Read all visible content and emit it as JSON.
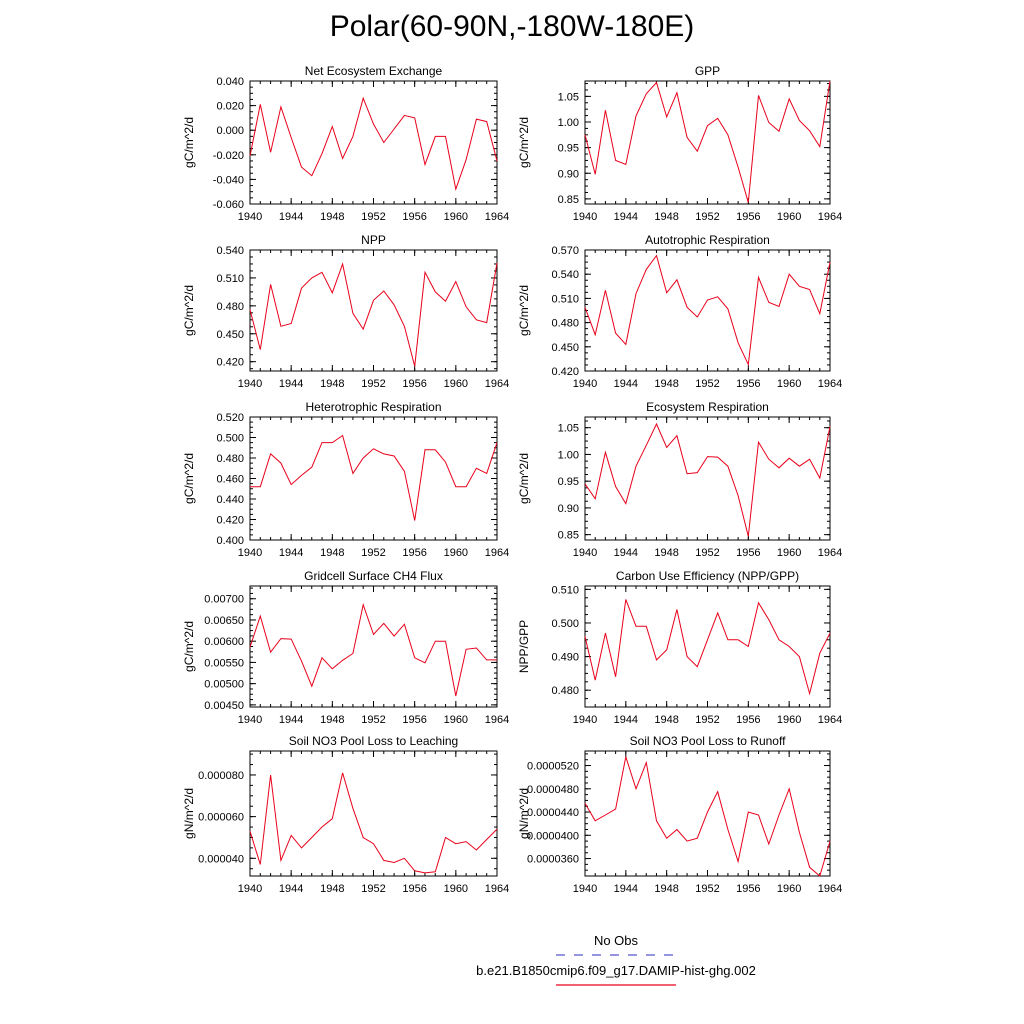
{
  "title": "Polar(60-90N,-180W-180E)",
  "legend": {
    "entries": [
      {
        "label": "No Obs",
        "color": "#5555cc",
        "style": "dashed"
      },
      {
        "label": "b.e21.B1850cmip6.f09_g17.DAMIP-hist-ghg.002",
        "color": "#e8001a",
        "style": "solid"
      }
    ]
  },
  "line_color": "#e8001a",
  "chart_data": [
    {
      "type": "line",
      "title": "Net Ecosystem Exchange",
      "ylabel": "gC/m^2/d",
      "xlim": [
        1940,
        1964
      ],
      "ylim": [
        -0.06,
        0.04
      ],
      "xticks": [
        "1940",
        "1944",
        "1948",
        "1952",
        "1956",
        "1960",
        "1964"
      ],
      "yticks": [
        "-0.060",
        "-0.040",
        "-0.020",
        "0.000",
        "0.020",
        "0.040"
      ],
      "x": [
        1940,
        1941,
        1942,
        1943,
        1944,
        1945,
        1946,
        1947,
        1948,
        1949,
        1950,
        1951,
        1952,
        1953,
        1954,
        1955,
        1956,
        1957,
        1958,
        1959,
        1960,
        1961,
        1962,
        1963,
        1964
      ],
      "values": [
        -0.021,
        0.021,
        -0.018,
        0.019,
        -0.006,
        -0.03,
        -0.037,
        -0.019,
        0.003,
        -0.023,
        -0.005,
        0.026,
        0.005,
        -0.01,
        0.001,
        0.012,
        0.01,
        -0.028,
        -0.005,
        -0.005,
        -0.048,
        -0.024,
        0.009,
        0.007,
        -0.025
      ]
    },
    {
      "type": "line",
      "title": "GPP",
      "ylabel": "gC/m^2/d",
      "xlim": [
        1940,
        1964
      ],
      "ylim": [
        0.84,
        1.08
      ],
      "xticks": [
        "1940",
        "1944",
        "1948",
        "1952",
        "1956",
        "1960",
        "1964"
      ],
      "yticks": [
        "0.85",
        "0.90",
        "0.95",
        "1.00",
        "1.05"
      ],
      "x": [
        1940,
        1941,
        1942,
        1943,
        1944,
        1945,
        1946,
        1947,
        1948,
        1949,
        1950,
        1951,
        1952,
        1953,
        1954,
        1955,
        1956,
        1957,
        1958,
        1959,
        1960,
        1961,
        1962,
        1963,
        1964
      ],
      "values": [
        0.975,
        0.898,
        1.023,
        0.925,
        0.917,
        1.012,
        1.055,
        1.077,
        1.01,
        1.057,
        0.97,
        0.943,
        0.993,
        1.007,
        0.975,
        0.912,
        0.843,
        1.052,
        0.999,
        0.982,
        1.045,
        1.003,
        0.983,
        0.952,
        1.08
      ]
    },
    {
      "type": "line",
      "title": "NPP",
      "ylabel": "gC/m^2/d",
      "xlim": [
        1940,
        1964
      ],
      "ylim": [
        0.41,
        0.54
      ],
      "xticks": [
        "1940",
        "1944",
        "1948",
        "1952",
        "1956",
        "1960",
        "1964"
      ],
      "yticks": [
        "0.420",
        "0.450",
        "0.480",
        "0.510",
        "0.540"
      ],
      "x": [
        1940,
        1941,
        1942,
        1943,
        1944,
        1945,
        1946,
        1947,
        1948,
        1949,
        1950,
        1951,
        1952,
        1953,
        1954,
        1955,
        1956,
        1957,
        1958,
        1959,
        1960,
        1961,
        1962,
        1963,
        1964
      ],
      "values": [
        0.476,
        0.433,
        0.503,
        0.458,
        0.461,
        0.499,
        0.51,
        0.516,
        0.494,
        0.525,
        0.472,
        0.455,
        0.486,
        0.496,
        0.481,
        0.458,
        0.415,
        0.516,
        0.495,
        0.485,
        0.506,
        0.479,
        0.465,
        0.462,
        0.526
      ]
    },
    {
      "type": "line",
      "title": "Autotrophic Respiration",
      "ylabel": "gC/m^2/d",
      "xlim": [
        1940,
        1964
      ],
      "ylim": [
        0.42,
        0.57
      ],
      "xticks": [
        "1940",
        "1944",
        "1948",
        "1952",
        "1956",
        "1960",
        "1964"
      ],
      "yticks": [
        "0.420",
        "0.450",
        "0.480",
        "0.510",
        "0.540",
        "0.570"
      ],
      "x": [
        1940,
        1941,
        1942,
        1943,
        1944,
        1945,
        1946,
        1947,
        1948,
        1949,
        1950,
        1951,
        1952,
        1953,
        1954,
        1955,
        1956,
        1957,
        1958,
        1959,
        1960,
        1961,
        1962,
        1963,
        1964
      ],
      "values": [
        0.499,
        0.465,
        0.52,
        0.467,
        0.453,
        0.516,
        0.546,
        0.563,
        0.517,
        0.533,
        0.499,
        0.487,
        0.508,
        0.512,
        0.497,
        0.455,
        0.428,
        0.536,
        0.505,
        0.5,
        0.54,
        0.525,
        0.521,
        0.491,
        0.555
      ]
    },
    {
      "type": "line",
      "title": "Heterotrophic Respiration",
      "ylabel": "gC/m^2/d",
      "xlim": [
        1940,
        1964
      ],
      "ylim": [
        0.4,
        0.52
      ],
      "xticks": [
        "1940",
        "1944",
        "1948",
        "1952",
        "1956",
        "1960",
        "1964"
      ],
      "yticks": [
        "0.400",
        "0.420",
        "0.440",
        "0.460",
        "0.480",
        "0.500",
        "0.520"
      ],
      "x": [
        1940,
        1941,
        1942,
        1943,
        1944,
        1945,
        1946,
        1947,
        1948,
        1949,
        1950,
        1951,
        1952,
        1953,
        1954,
        1955,
        1956,
        1957,
        1958,
        1959,
        1960,
        1961,
        1962,
        1963,
        1964
      ],
      "values": [
        0.452,
        0.452,
        0.484,
        0.475,
        0.454,
        0.463,
        0.471,
        0.495,
        0.495,
        0.502,
        0.465,
        0.48,
        0.489,
        0.484,
        0.482,
        0.467,
        0.419,
        0.488,
        0.488,
        0.476,
        0.452,
        0.452,
        0.47,
        0.465,
        0.495
      ]
    },
    {
      "type": "line",
      "title": "Ecosystem Respiration",
      "ylabel": "gC/m^2/d",
      "xlim": [
        1940,
        1964
      ],
      "ylim": [
        0.84,
        1.07
      ],
      "xticks": [
        "1940",
        "1944",
        "1948",
        "1952",
        "1956",
        "1960",
        "1964"
      ],
      "yticks": [
        "0.85",
        "0.90",
        "0.95",
        "1.00",
        "1.05"
      ],
      "x": [
        1940,
        1941,
        1942,
        1943,
        1944,
        1945,
        1946,
        1947,
        1948,
        1949,
        1950,
        1951,
        1952,
        1953,
        1954,
        1955,
        1956,
        1957,
        1958,
        1959,
        1960,
        1961,
        1962,
        1963,
        1964
      ],
      "values": [
        0.945,
        0.917,
        1.004,
        0.94,
        0.908,
        0.978,
        1.017,
        1.057,
        1.013,
        1.035,
        0.964,
        0.966,
        0.996,
        0.995,
        0.978,
        0.923,
        0.847,
        1.023,
        0.991,
        0.975,
        0.993,
        0.978,
        0.991,
        0.956,
        1.052
      ]
    },
    {
      "type": "line",
      "title": "Gridcell Surface CH4 Flux",
      "ylabel": "gC/m^2/d",
      "xlim": [
        1940,
        1964
      ],
      "ylim": [
        0.00445,
        0.0073
      ],
      "xticks": [
        "1940",
        "1944",
        "1948",
        "1952",
        "1956",
        "1960",
        "1964"
      ],
      "yticks": [
        "0.00450",
        "0.00500",
        "0.00550",
        "0.00600",
        "0.00650",
        "0.00700"
      ],
      "x": [
        1940,
        1941,
        1942,
        1943,
        1944,
        1945,
        1946,
        1947,
        1948,
        1949,
        1950,
        1951,
        1952,
        1953,
        1954,
        1955,
        1956,
        1957,
        1958,
        1959,
        1960,
        1961,
        1962,
        1963,
        1964
      ],
      "values": [
        0.00586,
        0.00659,
        0.00574,
        0.00606,
        0.00605,
        0.00553,
        0.00494,
        0.00561,
        0.00535,
        0.00555,
        0.00571,
        0.00686,
        0.00616,
        0.00642,
        0.00612,
        0.0064,
        0.00561,
        0.00549,
        0.006,
        0.006,
        0.00471,
        0.00581,
        0.00584,
        0.00556,
        0.00556
      ]
    },
    {
      "type": "line",
      "title": "Carbon Use Efficiency (NPP/GPP)",
      "ylabel": "NPP/GPP",
      "xlim": [
        1940,
        1964
      ],
      "ylim": [
        0.475,
        0.511
      ],
      "xticks": [
        "1940",
        "1944",
        "1948",
        "1952",
        "1956",
        "1960",
        "1964"
      ],
      "yticks": [
        "0.480",
        "0.490",
        "0.500",
        "0.510"
      ],
      "x": [
        1940,
        1941,
        1942,
        1943,
        1944,
        1945,
        1946,
        1947,
        1948,
        1949,
        1950,
        1951,
        1952,
        1953,
        1954,
        1955,
        1956,
        1957,
        1958,
        1959,
        1960,
        1961,
        1962,
        1963,
        1964
      ],
      "values": [
        0.496,
        0.483,
        0.497,
        0.484,
        0.507,
        0.499,
        0.499,
        0.489,
        0.492,
        0.504,
        0.49,
        0.487,
        0.495,
        0.503,
        0.495,
        0.495,
        0.493,
        0.506,
        0.501,
        0.495,
        0.493,
        0.49,
        0.479,
        0.491,
        0.497
      ]
    },
    {
      "type": "line",
      "title": "Soil NO3 Pool Loss to Leaching",
      "ylabel": "gN/m^2/d",
      "xlim": [
        1940,
        1964
      ],
      "ylim": [
        3.15e-05,
        9.15e-05
      ],
      "xticks": [
        "1940",
        "1944",
        "1948",
        "1952",
        "1956",
        "1960",
        "1964"
      ],
      "yticks": [
        "0.000040",
        "0.000060",
        "0.000080"
      ],
      "x": [
        1940,
        1941,
        1942,
        1943,
        1944,
        1945,
        1946,
        1947,
        1948,
        1949,
        1950,
        1951,
        1952,
        1953,
        1954,
        1955,
        1956,
        1957,
        1958,
        1959,
        1960,
        1961,
        1962,
        1963,
        1964
      ],
      "values": [
        5.3e-05,
        3.7e-05,
        8e-05,
        3.9e-05,
        5.1e-05,
        4.5e-05,
        5e-05,
        5.5e-05,
        5.9e-05,
        8.1e-05,
        6.4e-05,
        5e-05,
        4.7e-05,
        3.9e-05,
        3.8e-05,
        4e-05,
        3.4e-05,
        3.3e-05,
        3.35e-05,
        5e-05,
        4.7e-05,
        4.8e-05,
        4.4e-05,
        4.9e-05,
        5.4e-05
      ]
    },
    {
      "type": "line",
      "title": "Soil NO3 Pool Loss to Runoff",
      "ylabel": "gN/m^2/d",
      "xlim": [
        1940,
        1964
      ],
      "ylim": [
        3.3e-05,
        5.45e-05
      ],
      "xticks": [
        "1940",
        "1944",
        "1948",
        "1952",
        "1956",
        "1960",
        "1964"
      ],
      "yticks": [
        "0.0000360",
        "0.0000400",
        "0.0000440",
        "0.0000480",
        "0.0000520"
      ],
      "x": [
        1940,
        1941,
        1942,
        1943,
        1944,
        1945,
        1946,
        1947,
        1948,
        1949,
        1950,
        1951,
        1952,
        1953,
        1954,
        1955,
        1956,
        1957,
        1958,
        1959,
        1960,
        1961,
        1962,
        1963,
        1964
      ],
      "values": [
        4.55e-05,
        4.25e-05,
        4.35e-05,
        4.45e-05,
        5.35e-05,
        4.8e-05,
        5.25e-05,
        4.25e-05,
        3.95e-05,
        4.1e-05,
        3.9e-05,
        3.95e-05,
        4.4e-05,
        4.75e-05,
        4.1e-05,
        3.55e-05,
        4.4e-05,
        4.35e-05,
        3.85e-05,
        4.35e-05,
        4.8e-05,
        4.05e-05,
        3.45e-05,
        3.3e-05,
        3.9e-05
      ]
    }
  ]
}
